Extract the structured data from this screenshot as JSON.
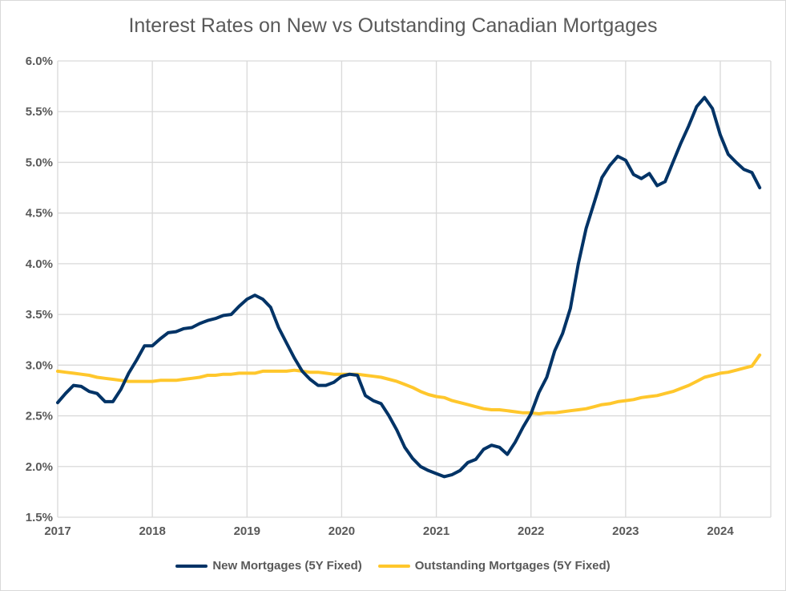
{
  "chart_data": {
    "type": "line",
    "title": "Interest Rates on New vs Outstanding Canadian Mortgages",
    "xlabel": "",
    "ylabel": "",
    "ylim": [
      1.5,
      6.0
    ],
    "y_ticks": [
      "1.5%",
      "2.0%",
      "2.5%",
      "3.0%",
      "3.5%",
      "4.0%",
      "4.5%",
      "5.0%",
      "5.5%",
      "6.0%"
    ],
    "x_ticks": [
      "2017",
      "2018",
      "2019",
      "2020",
      "2021",
      "2022",
      "2023",
      "2024"
    ],
    "x_start": "2017-01",
    "x_frequency": "monthly",
    "grid": true,
    "legend_position": "bottom",
    "series": [
      {
        "name": "New Mortgages (5Y Fixed)",
        "color": "#003366",
        "values": [
          2.63,
          2.72,
          2.8,
          2.79,
          2.74,
          2.72,
          2.64,
          2.64,
          2.76,
          2.92,
          3.05,
          3.19,
          3.19,
          3.26,
          3.32,
          3.33,
          3.36,
          3.37,
          3.41,
          3.44,
          3.46,
          3.49,
          3.5,
          3.58,
          3.65,
          3.69,
          3.65,
          3.57,
          3.37,
          3.22,
          3.07,
          2.94,
          2.86,
          2.8,
          2.8,
          2.83,
          2.89,
          2.91,
          2.9,
          2.7,
          2.65,
          2.62,
          2.5,
          2.36,
          2.19,
          2.08,
          2.0,
          1.96,
          1.93,
          1.9,
          1.92,
          1.96,
          2.04,
          2.07,
          2.17,
          2.21,
          2.19,
          2.12,
          2.24,
          2.39,
          2.52,
          2.73,
          2.88,
          3.14,
          3.31,
          3.56,
          4.0,
          4.35,
          4.6,
          4.85,
          4.97,
          5.06,
          5.02,
          4.88,
          4.84,
          4.89,
          4.77,
          4.81,
          5.0,
          5.19,
          5.36,
          5.55,
          5.64,
          5.53,
          5.27,
          5.08,
          5.0,
          4.93,
          4.9,
          4.75
        ]
      },
      {
        "name": "Outstanding Mortgages (5Y Fixed)",
        "color": "#FFC72C",
        "values": [
          2.94,
          2.93,
          2.92,
          2.91,
          2.9,
          2.88,
          2.87,
          2.86,
          2.85,
          2.84,
          2.84,
          2.84,
          2.84,
          2.85,
          2.85,
          2.85,
          2.86,
          2.87,
          2.88,
          2.9,
          2.9,
          2.91,
          2.91,
          2.92,
          2.92,
          2.92,
          2.94,
          2.94,
          2.94,
          2.94,
          2.95,
          2.94,
          2.93,
          2.93,
          2.92,
          2.91,
          2.91,
          2.91,
          2.91,
          2.9,
          2.89,
          2.88,
          2.86,
          2.84,
          2.81,
          2.78,
          2.74,
          2.71,
          2.69,
          2.68,
          2.65,
          2.63,
          2.61,
          2.59,
          2.57,
          2.56,
          2.56,
          2.55,
          2.54,
          2.53,
          2.53,
          2.52,
          2.53,
          2.53,
          2.54,
          2.55,
          2.56,
          2.57,
          2.59,
          2.61,
          2.62,
          2.64,
          2.65,
          2.66,
          2.68,
          2.69,
          2.7,
          2.72,
          2.74,
          2.77,
          2.8,
          2.84,
          2.88,
          2.9,
          2.92,
          2.93,
          2.95,
          2.97,
          2.99,
          3.1
        ]
      }
    ]
  }
}
